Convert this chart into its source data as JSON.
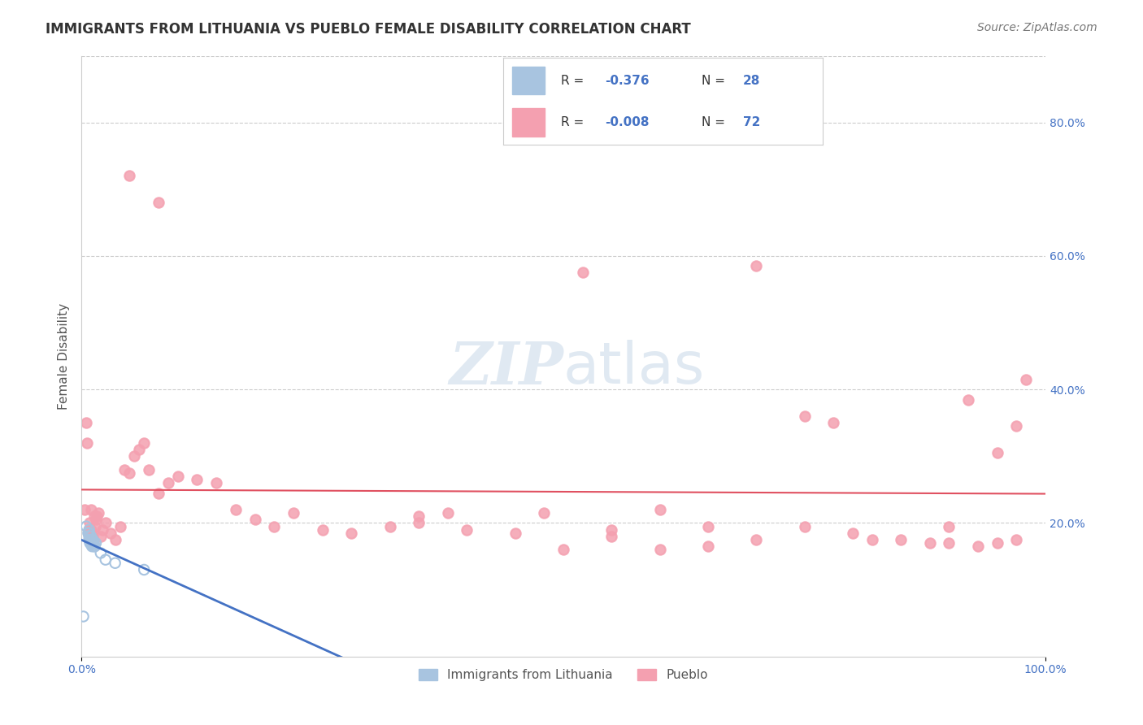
{
  "title": "IMMIGRANTS FROM LITHUANIA VS PUEBLO FEMALE DISABILITY CORRELATION CHART",
  "source": "Source: ZipAtlas.com",
  "xlabel": "",
  "ylabel": "Female Disability",
  "xlim": [
    0.0,
    1.0
  ],
  "ylim": [
    0.0,
    0.9
  ],
  "xticks": [
    0.0,
    0.2,
    0.4,
    0.6,
    0.8,
    1.0
  ],
  "xticklabels": [
    "0.0%",
    "",
    "",
    "",
    "",
    "100.0%"
  ],
  "yticks_right": [
    0.0,
    0.2,
    0.4,
    0.6,
    0.8
  ],
  "yticklabels_right": [
    "",
    "20.0%",
    "40.0%",
    "60.0%",
    "80.0%"
  ],
  "legend_r1": "R =  -0.376",
  "legend_n1": "N = 28",
  "legend_r2": "R = -0.008",
  "legend_n2": "N = 72",
  "lit_color": "#a8c4e0",
  "pueblo_color": "#f4a0b0",
  "trend_lit_color": "#4472c4",
  "trend_pueblo_color": "#e05060",
  "watermark": "ZIPatlas",
  "background_color": "#ffffff",
  "grid_color": "#cccccc",
  "lit_x": [
    0.005,
    0.007,
    0.008,
    0.008,
    0.008,
    0.008,
    0.009,
    0.009,
    0.009,
    0.01,
    0.01,
    0.01,
    0.01,
    0.011,
    0.011,
    0.011,
    0.012,
    0.012,
    0.012,
    0.013,
    0.013,
    0.014,
    0.015,
    0.02,
    0.025,
    0.035,
    0.065,
    0.002
  ],
  "lit_y": [
    0.195,
    0.185,
    0.175,
    0.18,
    0.19,
    0.185,
    0.17,
    0.175,
    0.17,
    0.168,
    0.172,
    0.175,
    0.18,
    0.165,
    0.17,
    0.175,
    0.168,
    0.17,
    0.175,
    0.165,
    0.17,
    0.165,
    0.17,
    0.155,
    0.145,
    0.14,
    0.13,
    0.06
  ],
  "pueblo_x": [
    0.003,
    0.005,
    0.006,
    0.008,
    0.008,
    0.01,
    0.01,
    0.01,
    0.012,
    0.013,
    0.014,
    0.015,
    0.016,
    0.018,
    0.02,
    0.022,
    0.025,
    0.03,
    0.035,
    0.04,
    0.045,
    0.05,
    0.055,
    0.06,
    0.065,
    0.07,
    0.08,
    0.09,
    0.1,
    0.12,
    0.14,
    0.16,
    0.18,
    0.2,
    0.22,
    0.25,
    0.28,
    0.32,
    0.35,
    0.4,
    0.45,
    0.5,
    0.55,
    0.6,
    0.65,
    0.7,
    0.75,
    0.8,
    0.85,
    0.9,
    0.92,
    0.95,
    0.97,
    0.98,
    0.35,
    0.38,
    0.6,
    0.65,
    0.55,
    0.48,
    0.52,
    0.7,
    0.75,
    0.78,
    0.82,
    0.88,
    0.9,
    0.93,
    0.95,
    0.97,
    0.05,
    0.08
  ],
  "pueblo_y": [
    0.22,
    0.35,
    0.32,
    0.2,
    0.19,
    0.22,
    0.19,
    0.185,
    0.18,
    0.21,
    0.195,
    0.205,
    0.21,
    0.215,
    0.18,
    0.19,
    0.2,
    0.185,
    0.175,
    0.195,
    0.28,
    0.275,
    0.3,
    0.31,
    0.32,
    0.28,
    0.245,
    0.26,
    0.27,
    0.265,
    0.26,
    0.22,
    0.205,
    0.195,
    0.215,
    0.19,
    0.185,
    0.195,
    0.2,
    0.19,
    0.185,
    0.16,
    0.18,
    0.16,
    0.165,
    0.175,
    0.195,
    0.185,
    0.175,
    0.195,
    0.385,
    0.305,
    0.345,
    0.415,
    0.21,
    0.215,
    0.22,
    0.195,
    0.19,
    0.215,
    0.575,
    0.585,
    0.36,
    0.35,
    0.175,
    0.17,
    0.17,
    0.165,
    0.17,
    0.175,
    0.72,
    0.68
  ],
  "lit_marker_size": 80,
  "pueblo_marker_size": 80
}
